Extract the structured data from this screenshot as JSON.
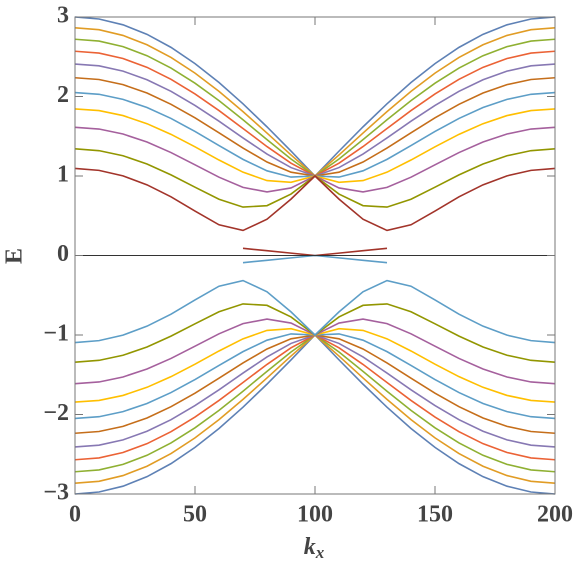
{
  "chart_data": {
    "type": "line",
    "x_label": "k",
    "x_label_subscript": "x",
    "y_label": "E",
    "xlim": [
      0,
      200
    ],
    "xticks": [
      0,
      50,
      100,
      150,
      200
    ],
    "ylim": [
      -3,
      3
    ],
    "yticks": [
      {
        "value": -3,
        "label": "−3"
      },
      {
        "value": -2,
        "label": "−2"
      },
      {
        "value": -1,
        "label": "−1"
      },
      0,
      1,
      2,
      3
    ],
    "x": [
      0,
      10,
      20,
      30,
      40,
      50,
      60,
      70,
      80,
      90,
      100,
      110,
      120,
      130,
      140,
      150,
      160,
      170,
      180,
      190,
      200
    ],
    "series": [
      {
        "color": "#5E81B5",
        "values": [
          3,
          2.975,
          2.902,
          2.782,
          2.618,
          2.414,
          2.176,
          1.908,
          1.618,
          1.313,
          1,
          1.313,
          1.618,
          1.908,
          2.176,
          2.414,
          2.618,
          2.782,
          2.902,
          2.975,
          3
        ]
      },
      {
        "color": "#E19C24",
        "values": [
          2.864,
          2.84,
          2.768,
          2.651,
          2.491,
          2.294,
          2.065,
          1.81,
          1.54,
          1.265,
          1,
          1.265,
          1.54,
          1.81,
          2.065,
          2.294,
          2.491,
          2.651,
          2.768,
          2.84,
          2.864
        ]
      },
      {
        "color": "#8FB032",
        "values": [
          2.72,
          2.697,
          2.627,
          2.513,
          2.358,
          2.167,
          1.948,
          1.707,
          1.457,
          1.214,
          1,
          1.214,
          1.457,
          1.707,
          1.948,
          2.167,
          2.358,
          2.513,
          2.627,
          2.697,
          2.72
        ]
      },
      {
        "color": "#EB6235",
        "values": [
          2.569,
          2.546,
          2.478,
          2.367,
          2.216,
          2.032,
          1.823,
          1.597,
          1.37,
          1.161,
          1,
          1.161,
          1.37,
          1.597,
          1.823,
          2.032,
          2.216,
          2.367,
          2.478,
          2.546,
          2.569
        ]
      },
      {
        "color": "#8778B3",
        "values": [
          2.408,
          2.386,
          2.319,
          2.211,
          2.065,
          1.888,
          1.689,
          1.479,
          1.276,
          1.106,
          1,
          1.106,
          1.276,
          1.479,
          1.689,
          1.888,
          2.065,
          2.211,
          2.319,
          2.386,
          2.408
        ]
      },
      {
        "color": "#C56E1A",
        "values": [
          2.236,
          2.214,
          2.149,
          2.044,
          1.902,
          1.732,
          1.543,
          1.351,
          1.176,
          1.048,
          1,
          1.048,
          1.176,
          1.351,
          1.543,
          1.732,
          1.902,
          2.044,
          2.149,
          2.214,
          2.236
        ]
      },
      {
        "color": "#5D9EC7",
        "values": [
          2.049,
          2.028,
          1.964,
          1.861,
          1.724,
          1.56,
          1.383,
          1.209,
          1.065,
          0.986,
          1,
          0.986,
          1.065,
          1.209,
          1.383,
          1.56,
          1.724,
          1.861,
          1.964,
          2.028,
          2.049
        ]
      },
      {
        "color": "#FFBF00",
        "values": [
          1.844,
          1.823,
          1.76,
          1.658,
          1.524,
          1.367,
          1.201,
          1.048,
          0.942,
          0.921,
          1,
          0.921,
          0.942,
          1.048,
          1.201,
          1.367,
          1.524,
          1.658,
          1.76,
          1.823,
          1.844
        ]
      },
      {
        "color": "#A5609D",
        "values": [
          1.612,
          1.591,
          1.528,
          1.428,
          1.295,
          1.141,
          0.985,
          0.857,
          0.8,
          0.85,
          1,
          0.85,
          0.8,
          0.857,
          0.985,
          1.141,
          1.295,
          1.428,
          1.528,
          1.591,
          1.612
        ]
      },
      {
        "color": "#929600",
        "values": [
          1.342,
          1.319,
          1.255,
          1.151,
          1.014,
          0.859,
          0.708,
          0.609,
          0.627,
          0.773,
          1,
          0.773,
          0.627,
          0.609,
          0.708,
          0.859,
          1.014,
          1.151,
          1.255,
          1.319,
          1.342
        ]
      },
      {
        "color": "#A2342A",
        "values": [
          1.095,
          1.071,
          1.002,
          0.889,
          0.738,
          0.559,
          0.386,
          0.315,
          0.456,
          0.709,
          1,
          0.709,
          0.456,
          0.315,
          0.386,
          0.559,
          0.738,
          0.889,
          1.002,
          1.071,
          1.095
        ]
      },
      {
        "color": "#A2342A",
        "values": [
          null,
          null,
          null,
          null,
          null,
          null,
          null,
          0.09,
          0.06,
          0.03,
          0,
          0.03,
          0.06,
          0.09,
          null,
          null,
          null,
          null,
          null,
          null,
          null
        ]
      },
      {
        "color": "#5E81B5",
        "values": [
          -3,
          -2.975,
          -2.902,
          -2.782,
          -2.618,
          -2.414,
          -2.176,
          -1.908,
          -1.618,
          -1.313,
          -1,
          -1.313,
          -1.618,
          -1.908,
          -2.176,
          -2.414,
          -2.618,
          -2.782,
          -2.902,
          -2.975,
          -3
        ]
      },
      {
        "color": "#E19C24",
        "values": [
          -2.864,
          -2.84,
          -2.768,
          -2.651,
          -2.491,
          -2.294,
          -2.065,
          -1.81,
          -1.54,
          -1.265,
          -1,
          -1.265,
          -1.54,
          -1.81,
          -2.065,
          -2.294,
          -2.491,
          -2.651,
          -2.768,
          -2.84,
          -2.864
        ]
      },
      {
        "color": "#8FB032",
        "values": [
          -2.72,
          -2.697,
          -2.627,
          -2.513,
          -2.358,
          -2.167,
          -1.948,
          -1.707,
          -1.457,
          -1.214,
          -1,
          -1.214,
          -1.457,
          -1.707,
          -1.948,
          -2.167,
          -2.358,
          -2.513,
          -2.627,
          -2.697,
          -2.72
        ]
      },
      {
        "color": "#EB6235",
        "values": [
          -2.569,
          -2.546,
          -2.478,
          -2.367,
          -2.216,
          -2.032,
          -1.823,
          -1.597,
          -1.37,
          -1.161,
          -1,
          -1.161,
          -1.37,
          -1.597,
          -1.823,
          -2.032,
          -2.216,
          -2.367,
          -2.478,
          -2.546,
          -2.569
        ]
      },
      {
        "color": "#8778B3",
        "values": [
          -2.408,
          -2.386,
          -2.319,
          -2.211,
          -2.065,
          -1.888,
          -1.689,
          -1.479,
          -1.276,
          -1.106,
          -1,
          -1.106,
          -1.276,
          -1.479,
          -1.689,
          -1.888,
          -2.065,
          -2.211,
          -2.319,
          -2.386,
          -2.408
        ]
      },
      {
        "color": "#C56E1A",
        "values": [
          -2.236,
          -2.214,
          -2.149,
          -2.044,
          -1.902,
          -1.732,
          -1.543,
          -1.351,
          -1.176,
          -1.048,
          -1,
          -1.048,
          -1.176,
          -1.351,
          -1.543,
          -1.732,
          -1.902,
          -2.044,
          -2.149,
          -2.214,
          -2.236
        ]
      },
      {
        "color": "#5D9EC7",
        "values": [
          -2.049,
          -2.028,
          -1.964,
          -1.861,
          -1.724,
          -1.56,
          -1.383,
          -1.209,
          -1.065,
          -0.986,
          -1,
          -0.986,
          -1.065,
          -1.209,
          -1.383,
          -1.56,
          -1.724,
          -1.861,
          -1.964,
          -2.028,
          -2.049
        ]
      },
      {
        "color": "#FFBF00",
        "values": [
          -1.844,
          -1.823,
          -1.76,
          -1.658,
          -1.524,
          -1.367,
          -1.201,
          -1.048,
          -0.942,
          -0.921,
          -1,
          -0.921,
          -0.942,
          -1.048,
          -1.201,
          -1.367,
          -1.524,
          -1.658,
          -1.76,
          -1.823,
          -1.844
        ]
      },
      {
        "color": "#A5609D",
        "values": [
          -1.612,
          -1.591,
          -1.528,
          -1.428,
          -1.295,
          -1.141,
          -0.985,
          -0.857,
          -0.8,
          -0.85,
          -1,
          -0.85,
          -0.8,
          -0.857,
          -0.985,
          -1.141,
          -1.295,
          -1.428,
          -1.528,
          -1.591,
          -1.612
        ]
      },
      {
        "color": "#929600",
        "values": [
          -1.342,
          -1.319,
          -1.255,
          -1.151,
          -1.014,
          -0.859,
          -0.708,
          -0.609,
          -0.627,
          -0.773,
          -1,
          -0.773,
          -0.627,
          -0.609,
          -0.708,
          -0.859,
          -1.014,
          -1.151,
          -1.255,
          -1.319,
          -1.342
        ]
      },
      {
        "color": "#5D9EC7",
        "values": [
          -1.095,
          -1.071,
          -1.002,
          -0.889,
          -0.738,
          -0.559,
          -0.386,
          -0.315,
          -0.456,
          -0.709,
          -1,
          -0.709,
          -0.456,
          -0.315,
          -0.386,
          -0.559,
          -0.738,
          -0.889,
          -1.002,
          -1.071,
          -1.095
        ]
      },
      {
        "color": "#5D9EC7",
        "values": [
          null,
          null,
          null,
          null,
          null,
          null,
          null,
          -0.09,
          -0.06,
          -0.03,
          0,
          -0.03,
          -0.06,
          -0.09,
          null,
          null,
          null,
          null,
          null,
          null,
          null
        ]
      }
    ]
  }
}
